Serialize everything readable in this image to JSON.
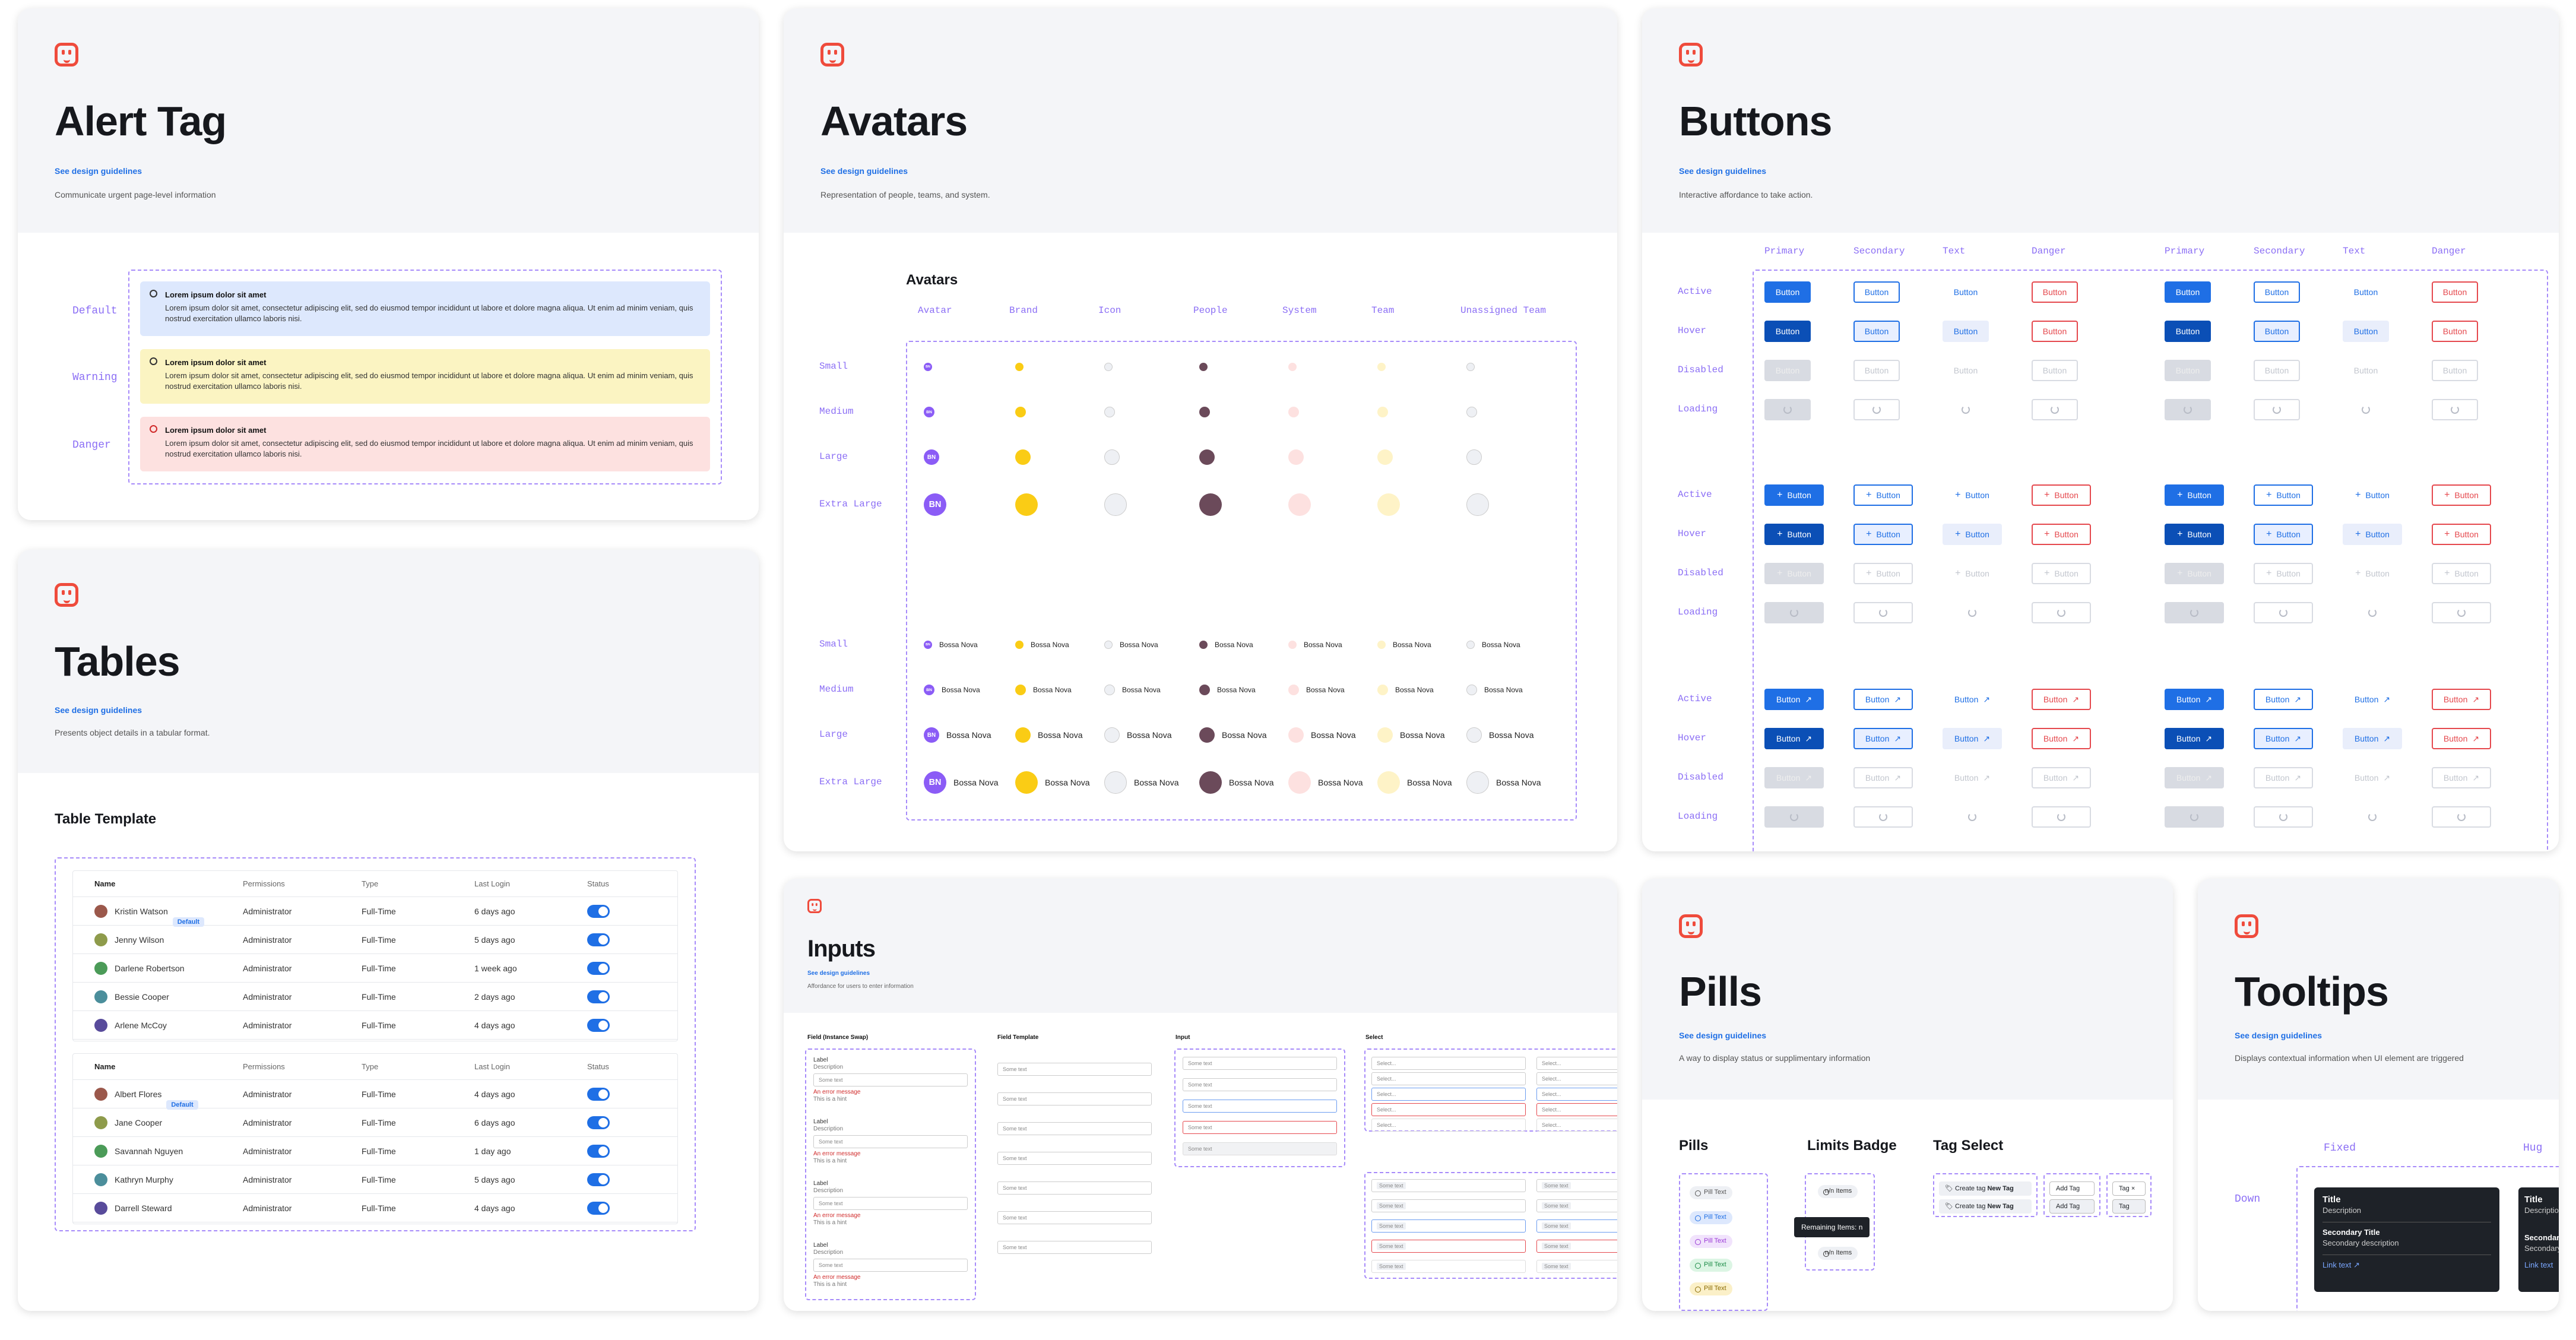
{
  "alert": {
    "title": "Alert Tag",
    "link": "See design guidelines",
    "desc": "Communicate urgent page-level information",
    "rows": [
      {
        "label": "Default",
        "heading": "Lorem ipsum dolor sit amet",
        "body": "Lorem ipsum dolor sit amet, consectetur adipiscing elit, sed do eiusmod tempor incididunt ut labore et dolore magna aliqua. Ut enim ad minim veniam, quis nostrud exercitation ullamco laboris nisi.",
        "bg": "#dde8fd"
      },
      {
        "label": "Warning",
        "heading": "Lorem ipsum dolor sit amet",
        "body": "Lorem ipsum dolor sit amet, consectetur adipiscing elit, sed do eiusmod tempor incididunt ut labore et dolore magna aliqua. Ut enim ad minim veniam, quis nostrud exercitation ullamco laboris nisi.",
        "bg": "#fbf4c2"
      },
      {
        "label": "Danger",
        "heading": "Lorem ipsum dolor sit amet",
        "body": "Lorem ipsum dolor sit amet, consectetur adipiscing elit, sed do eiusmod tempor incididunt ut labore et dolore magna aliqua. Ut enim ad minim veniam, quis nostrud exercitation ullamco laboris nisi.",
        "bg": "#fde1e0"
      }
    ]
  },
  "avatars": {
    "title": "Avatars",
    "link": "See design guidelines",
    "desc": "Representation of people, teams, and system.",
    "section": "Avatars",
    "columns": [
      "Avatar",
      "Brand",
      "Icon",
      "People",
      "System",
      "Team",
      "Unassigned Team"
    ],
    "sizes": [
      "Small",
      "Medium",
      "Large",
      "Extra Large"
    ],
    "initials": "BN",
    "name": "Bossa Nova"
  },
  "buttons": {
    "title": "Buttons",
    "link": "See design guidelines",
    "desc": "Interactive affordance to take action.",
    "columns": [
      "Primary",
      "Secondary",
      "Text",
      "Danger",
      "Primary",
      "Secondary",
      "Text",
      "Danger"
    ],
    "states": [
      "Active",
      "Hover",
      "Disabled",
      "Loading"
    ],
    "label": "Button"
  },
  "tables": {
    "title": "Tables",
    "link": "See design guidelines",
    "desc": "Presents object details in a tabular format.",
    "section": "Table Template",
    "headers": [
      "Name",
      "Permissions",
      "Type",
      "Last Login",
      "Status"
    ],
    "badge": "Default",
    "table1": [
      {
        "name": "Kristin Watson",
        "perm": "Administrator",
        "type": "Full-Time",
        "login": "6 days ago",
        "badge": true
      },
      {
        "name": "Jenny Wilson",
        "perm": "Administrator",
        "type": "Full-Time",
        "login": "5 days ago",
        "badge": false
      },
      {
        "name": "Darlene Robertson",
        "perm": "Administrator",
        "type": "Full-Time",
        "login": "1 week ago",
        "badge": false
      },
      {
        "name": "Bessie Cooper",
        "perm": "Administrator",
        "type": "Full-Time",
        "login": "2 days ago",
        "badge": false
      },
      {
        "name": "Arlene McCoy",
        "perm": "Administrator",
        "type": "Full-Time",
        "login": "4 days ago",
        "badge": false
      }
    ],
    "table2": [
      {
        "name": "Albert Flores",
        "perm": "Administrator",
        "type": "Full-Time",
        "login": "4 days ago",
        "badge": true
      },
      {
        "name": "Jane Cooper",
        "perm": "Administrator",
        "type": "Full-Time",
        "login": "6 days ago",
        "badge": false
      },
      {
        "name": "Savannah Nguyen",
        "perm": "Administrator",
        "type": "Full-Time",
        "login": "1 day ago",
        "badge": false
      },
      {
        "name": "Kathryn Murphy",
        "perm": "Administrator",
        "type": "Full-Time",
        "login": "5 days ago",
        "badge": false
      },
      {
        "name": "Darrell Steward",
        "perm": "Administrator",
        "type": "Full-Time",
        "login": "4 days ago",
        "badge": false
      }
    ]
  },
  "inputs": {
    "title": "Inputs",
    "link": "See design guidelines",
    "desc": "Affordance for users to enter information",
    "columns": [
      "Field (Instance Swap)",
      "Field Template",
      "Input",
      "Select"
    ],
    "label": "Label",
    "description": "Description",
    "placeholder": "Some text",
    "error": "An error message",
    "hint": "This is a hint",
    "select": "Select...",
    "tag": "Some text"
  },
  "pills": {
    "title": "Pills",
    "link": "See design guidelines",
    "desc": "A way to display status or supplimentary information",
    "sections": [
      "Pills",
      "Limits Badge",
      "Tag Select"
    ],
    "pill_text": "Pill Text",
    "limit": "n/n Items",
    "remaining": "Remaining Items: n",
    "create": "Create tag",
    "new_tag": "New Tag",
    "add_tag": "Add Tag",
    "tag": "Tag"
  },
  "tooltips": {
    "title": "Tooltips",
    "link": "See design guidelines",
    "desc": "Displays contextual information when UI element are triggered",
    "fixed": "Fixed",
    "hug": "Hug",
    "down": "Down",
    "tip_title": "Title",
    "tip_desc": "Description",
    "tip_sec_title": "Secondary Title",
    "tip_sec_desc": "Secondary description",
    "tip_link": "Link text"
  }
}
